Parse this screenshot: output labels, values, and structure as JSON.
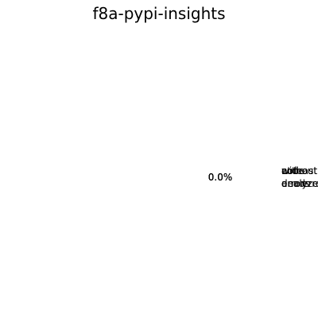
{
  "chart_data": {
    "type": "pie",
    "title": "f8a-pypi-insights",
    "slices": [
      {
        "label": "without errors",
        "label_lines": [
          "without",
          "errors"
        ],
        "value": 0,
        "percent_label": "0.0%"
      },
      {
        "label": "at least one error",
        "label_lines": [
          "at least",
          "one error"
        ],
        "value": 0,
        "percent_label": "0.0%"
      },
      {
        "label": "not analyzed",
        "label_lines": [
          "not",
          "analyzed"
        ],
        "value": 0,
        "percent_label": "0.0%"
      },
      {
        "label": "code dead",
        "label_lines": [
          "code",
          "dead"
        ],
        "value": 0,
        "percent_label": "0.0%"
      }
    ]
  }
}
